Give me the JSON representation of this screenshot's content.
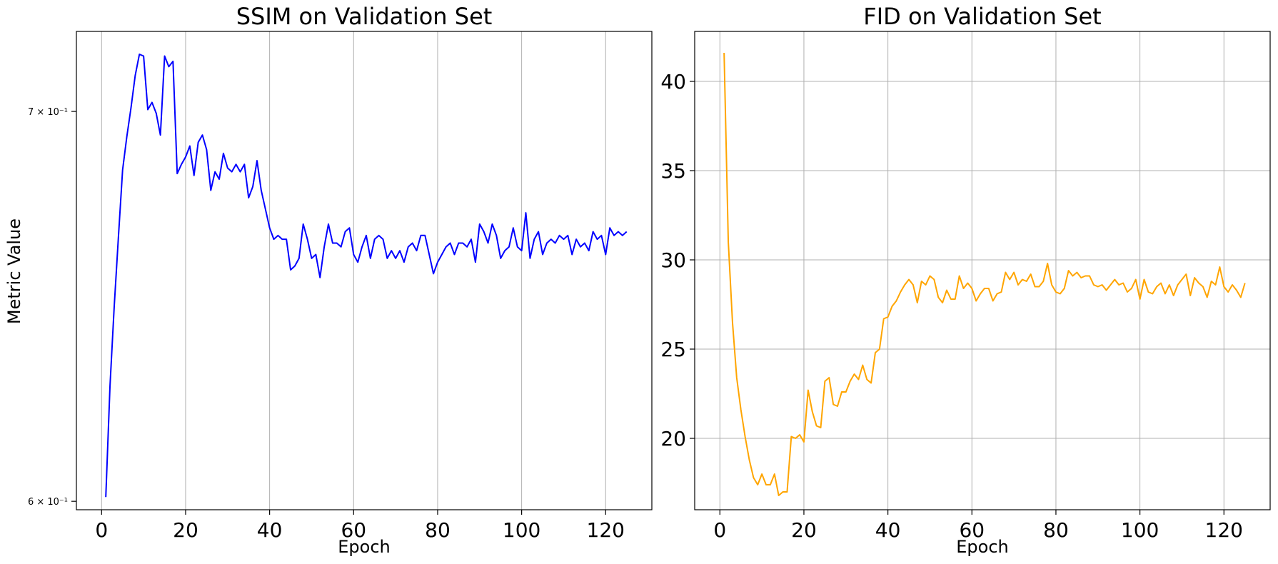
{
  "chart_data": [
    {
      "type": "line",
      "title": "SSIM on Validation Set",
      "xlabel": "Epoch",
      "ylabel": "Metric Value",
      "yscale": "log",
      "ylim": [
        0.598,
        0.7225
      ],
      "xlim": [
        -6,
        131
      ],
      "xticks": [
        0,
        20,
        40,
        60,
        80,
        100,
        120
      ],
      "yticks": [
        {
          "value": 0.6,
          "label": "6 × 10⁻¹"
        },
        {
          "value": 0.7,
          "label": "7 × 10⁻¹"
        }
      ],
      "grid": "x-only",
      "color": "#0000ff",
      "x": [
        1,
        2,
        3,
        4,
        5,
        6,
        7,
        8,
        9,
        10,
        11,
        12,
        13,
        14,
        15,
        16,
        17,
        18,
        19,
        20,
        21,
        22,
        23,
        24,
        25,
        26,
        27,
        28,
        29,
        30,
        31,
        32,
        33,
        34,
        35,
        36,
        37,
        38,
        39,
        40,
        41,
        42,
        43,
        44,
        45,
        46,
        47,
        48,
        49,
        50,
        51,
        52,
        53,
        54,
        55,
        56,
        57,
        58,
        59,
        60,
        61,
        62,
        63,
        64,
        65,
        66,
        67,
        68,
        69,
        70,
        71,
        72,
        73,
        74,
        75,
        76,
        77,
        78,
        79,
        80,
        81,
        82,
        83,
        84,
        85,
        86,
        87,
        88,
        89,
        90,
        91,
        92,
        93,
        94,
        95,
        96,
        97,
        98,
        99,
        100,
        101,
        102,
        103,
        104,
        105,
        106,
        107,
        108,
        109,
        110,
        111,
        112,
        113,
        114,
        115,
        116,
        117,
        118,
        119,
        120,
        121,
        122,
        123,
        124,
        125
      ],
      "y": [
        0.601,
        0.628,
        0.648,
        0.666,
        0.684,
        0.693,
        0.701,
        0.71,
        0.716,
        0.7155,
        0.7005,
        0.7025,
        0.6995,
        0.6935,
        0.7155,
        0.7125,
        0.714,
        0.683,
        0.6855,
        0.6875,
        0.6905,
        0.6825,
        0.6915,
        0.6935,
        0.6895,
        0.6785,
        0.6835,
        0.6815,
        0.6885,
        0.6845,
        0.6835,
        0.6855,
        0.6835,
        0.6855,
        0.6765,
        0.6795,
        0.6865,
        0.6785,
        0.6735,
        0.6685,
        0.6655,
        0.6665,
        0.6655,
        0.6655,
        0.6575,
        0.6585,
        0.6605,
        0.6695,
        0.6655,
        0.6605,
        0.6615,
        0.6555,
        0.6635,
        0.6695,
        0.6645,
        0.6645,
        0.6635,
        0.6675,
        0.6685,
        0.6615,
        0.6595,
        0.6635,
        0.6665,
        0.6605,
        0.6655,
        0.6665,
        0.6655,
        0.6605,
        0.6625,
        0.6605,
        0.6625,
        0.6595,
        0.6635,
        0.6645,
        0.6625,
        0.6665,
        0.6665,
        0.6615,
        0.6565,
        0.6595,
        0.6615,
        0.6635,
        0.6645,
        0.6615,
        0.6645,
        0.6645,
        0.6635,
        0.6655,
        0.6595,
        0.6695,
        0.6675,
        0.6645,
        0.6695,
        0.6665,
        0.6605,
        0.6625,
        0.6635,
        0.6685,
        0.6635,
        0.6625,
        0.6725,
        0.6605,
        0.6655,
        0.6675,
        0.6615,
        0.6645,
        0.6655,
        0.6645,
        0.6665,
        0.6655,
        0.6665,
        0.6615,
        0.6655,
        0.6635,
        0.6645,
        0.6625,
        0.6675,
        0.6655,
        0.6665,
        0.6615,
        0.6685,
        0.6665,
        0.6675,
        0.6665,
        0.6675
      ]
    },
    {
      "type": "line",
      "title": "FID on Validation Set",
      "xlabel": "Epoch",
      "ylabel": "",
      "yscale": "linear",
      "ylim": [
        16.0,
        42.8
      ],
      "xlim": [
        -6,
        131
      ],
      "xticks": [
        0,
        20,
        40,
        60,
        80,
        100,
        120
      ],
      "yticks": [
        {
          "value": 20,
          "label": "20"
        },
        {
          "value": 25,
          "label": "25"
        },
        {
          "value": 30,
          "label": "30"
        },
        {
          "value": 35,
          "label": "35"
        },
        {
          "value": 40,
          "label": "40"
        }
      ],
      "grid": "both",
      "color": "#ffa500",
      "x": [
        1,
        2,
        3,
        4,
        5,
        6,
        7,
        8,
        9,
        10,
        11,
        12,
        13,
        14,
        15,
        16,
        17,
        18,
        19,
        20,
        21,
        22,
        23,
        24,
        25,
        26,
        27,
        28,
        29,
        30,
        31,
        32,
        33,
        34,
        35,
        36,
        37,
        38,
        39,
        40,
        41,
        42,
        43,
        44,
        45,
        46,
        47,
        48,
        49,
        50,
        51,
        52,
        53,
        54,
        55,
        56,
        57,
        58,
        59,
        60,
        61,
        62,
        63,
        64,
        65,
        66,
        67,
        68,
        69,
        70,
        71,
        72,
        73,
        74,
        75,
        76,
        77,
        78,
        79,
        80,
        81,
        82,
        83,
        84,
        85,
        86,
        87,
        88,
        89,
        90,
        91,
        92,
        93,
        94,
        95,
        96,
        97,
        98,
        99,
        100,
        101,
        102,
        103,
        104,
        105,
        106,
        107,
        108,
        109,
        110,
        111,
        112,
        113,
        114,
        115,
        116,
        117,
        118,
        119,
        120,
        121,
        122,
        123,
        124,
        125
      ],
      "y": [
        41.6,
        31.0,
        26.5,
        23.4,
        21.6,
        20.1,
        18.8,
        17.8,
        17.4,
        18.0,
        17.4,
        17.4,
        18.0,
        16.8,
        17.0,
        17.0,
        20.1,
        20.0,
        20.2,
        19.8,
        22.7,
        21.5,
        20.7,
        20.6,
        23.2,
        23.4,
        21.9,
        21.8,
        22.6,
        22.6,
        23.2,
        23.6,
        23.3,
        24.1,
        23.3,
        23.1,
        24.8,
        25.0,
        26.7,
        26.8,
        27.4,
        27.7,
        28.2,
        28.6,
        28.9,
        28.6,
        27.6,
        28.8,
        28.6,
        29.1,
        28.9,
        27.9,
        27.6,
        28.3,
        27.8,
        27.8,
        29.1,
        28.4,
        28.7,
        28.4,
        27.7,
        28.1,
        28.4,
        28.4,
        27.7,
        28.1,
        28.2,
        29.3,
        28.9,
        29.3,
        28.6,
        28.9,
        28.8,
        29.2,
        28.5,
        28.5,
        28.8,
        29.8,
        28.6,
        28.2,
        28.1,
        28.4,
        29.4,
        29.1,
        29.3,
        29.0,
        29.1,
        29.1,
        28.6,
        28.5,
        28.6,
        28.3,
        28.6,
        28.9,
        28.6,
        28.7,
        28.2,
        28.4,
        28.9,
        27.8,
        28.9,
        28.2,
        28.1,
        28.5,
        28.7,
        28.1,
        28.6,
        28.0,
        28.6,
        28.9,
        29.2,
        28.0,
        29.0,
        28.7,
        28.5,
        27.9,
        28.8,
        28.6,
        29.6,
        28.5,
        28.2,
        28.6,
        28.3,
        27.9,
        28.7
      ]
    }
  ]
}
